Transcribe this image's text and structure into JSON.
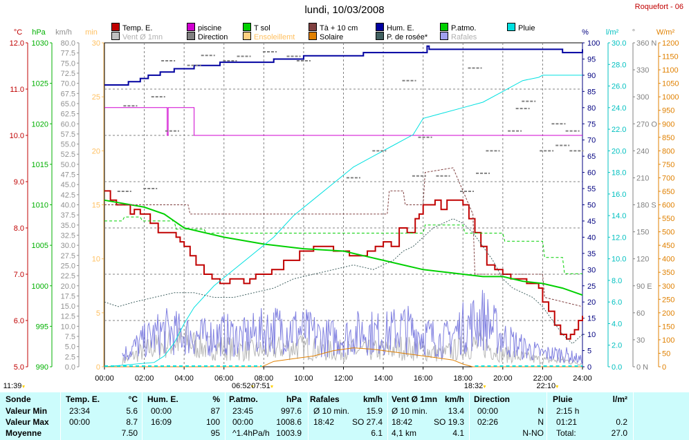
{
  "header": {
    "title": "lundi, 10/03/2008",
    "station": "Roquefort - 06"
  },
  "legend": [
    {
      "label": "Temp. E.",
      "color": "#c00000",
      "dim": false
    },
    {
      "label": "piscine",
      "color": "#d000d0",
      "dim": false
    },
    {
      "label": "T sol",
      "color": "#00d000",
      "dim": false
    },
    {
      "label": "Tà + 10 cm",
      "color": "#804040",
      "dim": false
    },
    {
      "label": "Hum. E.",
      "color": "#0000a0",
      "dim": false
    },
    {
      "label": "P.atmo.",
      "color": "#00d000",
      "dim": false
    },
    {
      "label": "Pluie",
      "color": "#00e0e0",
      "dim": false
    },
    {
      "label": "Vent Ø 1mn",
      "color": "#c0c0c0",
      "dim": true
    },
    {
      "label": "Direction",
      "color": "#808080",
      "dim": false
    },
    {
      "label": "Ensoleillemt",
      "color": "#ffd080",
      "dim": true
    },
    {
      "label": "Solaire",
      "color": "#e08000",
      "dim": false
    },
    {
      "label": "P. de rosée*",
      "color": "#406060",
      "dim": false
    },
    {
      "label": "Rafales",
      "color": "#a0a0f0",
      "dim": true
    }
  ],
  "axes": {
    "temp": {
      "unit": "°C",
      "color": "#c00000",
      "ticks": [
        "12.0",
        "11.0",
        "10.0",
        "9.0",
        "8.0",
        "7.0",
        "6.0",
        "5.0"
      ]
    },
    "press": {
      "unit": "hPa",
      "color": "#00b000",
      "ticks": [
        "1030",
        "1025",
        "1020",
        "1015",
        "1010",
        "1005",
        "1000",
        "995",
        "990"
      ]
    },
    "wind": {
      "unit": "km/h",
      "color": "#909090",
      "ticks": [
        "80.0",
        "77.5",
        "75.0",
        "72.5",
        "70.0",
        "67.5",
        "65.0",
        "62.5",
        "60.0",
        "57.5",
        "55.0",
        "52.5",
        "50.0",
        "47.5",
        "45.0",
        "42.5",
        "40.0",
        "37.5",
        "35.0",
        "32.5",
        "30.0",
        "27.5",
        "25.0",
        "22.5",
        "20.0",
        "17.5",
        "15.0",
        "12.5",
        "10.0",
        "7.5",
        "5.0",
        "2.5",
        "0.0"
      ]
    },
    "min": {
      "unit": "min",
      "color": "#ffc060",
      "ticks": [
        "30",
        "25",
        "20",
        "15",
        "10",
        "5",
        "0"
      ]
    },
    "pct": {
      "unit": "%",
      "color": "#000080",
      "ticks": [
        "100",
        "95",
        "90",
        "85",
        "80",
        "75",
        "70",
        "65",
        "60",
        "55",
        "50",
        "45",
        "40",
        "35",
        "30",
        "25",
        "20",
        "15",
        "10",
        "5",
        "0"
      ]
    },
    "rain": {
      "unit": "l/m²",
      "color": "#00c0c0",
      "ticks": [
        "30.0",
        "28.0",
        "26.0",
        "24.0",
        "22.0",
        "20.0",
        "18.0",
        "16.0",
        "14.0",
        "12.0",
        "10.0",
        "8.0",
        "6.0",
        "4.0",
        "2.0",
        "0.0"
      ]
    },
    "dir": {
      "unit": "°",
      "color": "#808080",
      "ticks": [
        "360 N",
        "330",
        "300",
        "270 O",
        "240",
        "210",
        "180 S",
        "150",
        "120",
        "90 E",
        "60",
        "30",
        "0 N"
      ]
    },
    "solar": {
      "unit": "W/m²",
      "color": "#e08000",
      "ticks": [
        "1200",
        "1150",
        "1100",
        "1050",
        "1000",
        "950",
        "900",
        "850",
        "800",
        "750",
        "700",
        "650",
        "600",
        "550",
        "500",
        "450",
        "400",
        "350",
        "300",
        "250",
        "200",
        "150",
        "100",
        "50",
        "0"
      ]
    }
  },
  "time_axis": {
    "ticks": [
      "00:00",
      "02:00",
      "04:00",
      "06:00",
      "08:00",
      "10:00",
      "12:00",
      "14:00",
      "16:00",
      "18:00",
      "20:00",
      "22:00",
      "24:00"
    ],
    "sun_labels": [
      {
        "text": "11:39",
        "hour": -4.9,
        "row": 1
      },
      {
        "text": "06:52",
        "hour": 6.87,
        "row": 1
      },
      {
        "text": "07:51",
        "hour": 7.85,
        "row": 1
      },
      {
        "text": "18:32",
        "hour": 18.53,
        "row": 1
      },
      {
        "text": "22:10",
        "hour": 22.17,
        "row": 1
      }
    ]
  },
  "chart_data": {
    "type": "line",
    "x_unit": "hour",
    "xlim": [
      0,
      24
    ],
    "series": [
      {
        "name": "Temp. E.",
        "axis": "temp",
        "color": "#c00000",
        "width": 2,
        "x": [
          0,
          0.3,
          0.6,
          1.0,
          1.3,
          1.5,
          1.8,
          2.0,
          2.3,
          2.7,
          3.2,
          3.6,
          3.8,
          4.0,
          4.3,
          4.6,
          5.0,
          5.4,
          5.8,
          6.3,
          6.6,
          7.0,
          7.3,
          7.6,
          8.0,
          8.4,
          9.0,
          9.5,
          9.8,
          10.0,
          10.5,
          11.0,
          11.5,
          11.8,
          12.0,
          12.3,
          12.8,
          13.2,
          13.6,
          14.0,
          14.4,
          14.8,
          15.2,
          15.6,
          15.8,
          16.0,
          16.3,
          16.6,
          16.9,
          17.2,
          17.6,
          18.0,
          18.3,
          18.6,
          18.9,
          19.2,
          19.6,
          20.0,
          20.4,
          20.8,
          21.2,
          21.6,
          21.8,
          22.0,
          22.3,
          22.6,
          22.9,
          23.2,
          23.4,
          23.6,
          23.8,
          24.0
        ],
        "y": [
          8.8,
          8.6,
          8.5,
          8.5,
          8.3,
          8.4,
          8.3,
          8.3,
          8.1,
          7.9,
          7.9,
          7.8,
          7.7,
          7.6,
          7.4,
          7.2,
          7.0,
          6.9,
          6.8,
          6.9,
          6.9,
          6.8,
          6.9,
          7.0,
          7.0,
          7.1,
          7.3,
          7.3,
          7.5,
          7.5,
          7.6,
          7.6,
          7.5,
          7.5,
          7.5,
          7.4,
          7.4,
          7.5,
          7.6,
          7.7,
          7.6,
          8.0,
          7.9,
          8.2,
          8.3,
          8.5,
          8.5,
          8.6,
          8.4,
          8.6,
          8.6,
          8.5,
          8.2,
          7.9,
          7.6,
          7.2,
          7.1,
          7.0,
          6.9,
          6.9,
          6.8,
          6.8,
          6.7,
          6.4,
          6.2,
          5.9,
          5.7,
          5.6,
          5.7,
          5.8,
          6.0,
          6.1
        ]
      },
      {
        "name": "piscine",
        "axis": "temp",
        "color": "#d000d0",
        "width": 1,
        "x": [
          0,
          3.1,
          3.15,
          3.2,
          3.25,
          4.45,
          4.5,
          24
        ],
        "y": [
          10.6,
          10.6,
          10.0,
          10.6,
          10.6,
          10.6,
          10.0,
          10.0
        ]
      },
      {
        "name": "T sol",
        "axis": "temp",
        "color": "#00d000",
        "width": 2,
        "x": [
          0,
          2,
          3,
          4,
          6,
          8,
          10,
          12,
          13,
          14,
          15,
          16,
          17,
          18,
          19,
          20,
          21,
          22,
          23,
          24
        ],
        "y": [
          8.6,
          8.45,
          8.3,
          8.0,
          7.8,
          7.65,
          7.55,
          7.5,
          7.4,
          7.3,
          7.2,
          7.1,
          7.05,
          7.0,
          6.95,
          6.95,
          6.85,
          6.8,
          6.7,
          6.55
        ]
      },
      {
        "name": "Tà + 10 cm",
        "axis": "temp",
        "color": "#804040",
        "width": 1,
        "dash": "3,2",
        "x": [
          0,
          4.2,
          4.3,
          14.2,
          14.3,
          15.0,
          15.1,
          16.0,
          16.1,
          17.5,
          18.5,
          18.6,
          22.0,
          22.1,
          24
        ],
        "y": [
          8.5,
          8.5,
          8.3,
          8.3,
          8.8,
          8.8,
          8.5,
          8.5,
          9.2,
          9.3,
          8.3,
          7.0,
          7.0,
          6.5,
          6.3
        ]
      },
      {
        "name": "Hum. E.",
        "axis": "pct",
        "color": "#0000a0",
        "width": 2,
        "x": [
          0,
          0.8,
          1.2,
          1.8,
          2.2,
          2.8,
          3.5,
          4.0,
          4.5,
          5.0,
          5.8,
          6.5,
          7.5,
          8.5,
          9.5,
          10.0,
          11.0,
          12.0,
          13.0,
          14.0,
          15.0,
          16.0,
          16.2,
          16.3,
          16.5,
          17.5,
          19.0,
          20.0,
          21.0,
          22.0,
          23.0,
          24.0
        ],
        "y": [
          87,
          87,
          88,
          89,
          90,
          91,
          92,
          92,
          93,
          93,
          94,
          94,
          94,
          95,
          95,
          96,
          96,
          96,
          97,
          97,
          97,
          97,
          99,
          98,
          98,
          98,
          98,
          98,
          98,
          98,
          97,
          98
        ]
      },
      {
        "name": "P.atmo.",
        "axis": "press",
        "color": "#00d000",
        "width": 1,
        "dash": "4,3",
        "x": [
          0,
          0.9,
          1.0,
          1.8,
          1.9,
          3.5,
          3.6,
          5.0,
          5.1,
          16.0,
          16.1,
          18.0,
          18.1,
          20.0,
          20.1,
          22.0,
          22.1,
          23.0,
          23.1,
          24.0
        ],
        "y": [
          1008.0,
          1008.0,
          1008.5,
          1008.5,
          1008.0,
          1008.0,
          1007.0,
          1007.0,
          1006.5,
          1006.5,
          1007.5,
          1007.5,
          1006.5,
          1006.5,
          1005.5,
          1005.5,
          1003.5,
          1003.5,
          1001.5,
          1001.5
        ]
      },
      {
        "name": "Pluie",
        "axis": "rain",
        "color": "#00e0e0",
        "width": 1,
        "x": [
          0,
          2.5,
          3.0,
          3.5,
          4.0,
          4.5,
          5.5,
          6.5,
          7.5,
          8.5,
          9.5,
          10.5,
          11.5,
          12.5,
          13.5,
          14.5,
          15.5,
          16.0,
          17.0,
          18.0,
          19.0,
          20.0,
          21.0,
          21.8,
          22.0,
          23.0,
          24.0
        ],
        "y": [
          0,
          0.4,
          1.0,
          2.2,
          4.0,
          5.5,
          7.5,
          9.0,
          10.5,
          12.0,
          14.0,
          15.5,
          17.0,
          18.5,
          19.5,
          20.5,
          21.5,
          23.0,
          23.5,
          24.0,
          24.5,
          25.5,
          26.5,
          26.8,
          27.0,
          27.0,
          27.0
        ]
      },
      {
        "name": "P. de rosée*",
        "axis": "temp",
        "color": "#406060",
        "width": 1,
        "dash": "2,2",
        "x": [
          0,
          0.7,
          1.5,
          2.5,
          3.5,
          4.5,
          5.5,
          6.5,
          7.5,
          8.5,
          9.5,
          10.5,
          11.5,
          12.5,
          13.5,
          14.0,
          14.5,
          15.0,
          15.5,
          16.0,
          16.5,
          17.0,
          17.5,
          18.0,
          18.5,
          19.0,
          19.5,
          20.0,
          20.5,
          21.0,
          21.5,
          22.0,
          22.5,
          23.0,
          23.5,
          24.0
        ],
        "y": [
          6.4,
          6.3,
          6.4,
          6.5,
          6.6,
          6.6,
          6.5,
          6.5,
          6.6,
          6.7,
          6.9,
          7.0,
          7.1,
          7.2,
          7.1,
          7.2,
          7.3,
          7.5,
          7.6,
          7.8,
          8.0,
          8.1,
          8.2,
          8.1,
          7.9,
          7.6,
          7.3,
          6.9,
          6.7,
          6.6,
          6.5,
          6.3,
          6.0,
          5.7,
          5.5,
          5.7
        ]
      },
      {
        "name": "Solaire",
        "axis": "solar",
        "color": "#e08000",
        "width": 1,
        "x": [
          0,
          7.9,
          8.5,
          9.5,
          10.5,
          11.5,
          12.5,
          13.5,
          14.5,
          15.5,
          16.5,
          17.5,
          18.0,
          18.5,
          24
        ],
        "y": [
          0,
          0,
          20,
          30,
          40,
          60,
          70,
          65,
          55,
          45,
          35,
          25,
          10,
          0,
          0
        ]
      },
      {
        "name": "Vent Ø 1mn",
        "axis": "wind",
        "color": "#b8b8b8",
        "width": 1,
        "amp": [
          0,
          2,
          5,
          7,
          8,
          6,
          6,
          5,
          5,
          6,
          6,
          5,
          5,
          5,
          5,
          6,
          5,
          4,
          6,
          7,
          4,
          3,
          2,
          2,
          1
        ]
      },
      {
        "name": "Rafales",
        "axis": "wind",
        "color": "#8080e0",
        "width": 1,
        "amp": [
          0,
          4,
          8,
          11,
          10,
          9,
          10,
          9,
          11,
          12,
          11,
          9,
          9,
          11,
          10,
          12,
          10,
          8,
          12,
          15,
          9,
          6,
          4,
          4,
          2
        ]
      },
      {
        "name": "Direction",
        "axis": "dir",
        "color": "#808080",
        "width": 2,
        "points": [
          [
            1.0,
            195
          ],
          [
            1.3,
            290
          ],
          [
            2.3,
            198
          ],
          [
            2.7,
            300
          ],
          [
            3.2,
            340
          ],
          [
            3.4,
            262
          ],
          [
            4.5,
            335
          ],
          [
            5.2,
            346
          ],
          [
            6.3,
            340
          ],
          [
            7.0,
            345
          ],
          [
            8.3,
            350
          ],
          [
            9.5,
            345
          ],
          [
            10.0,
            340
          ],
          [
            12.5,
            210
          ],
          [
            13.8,
            240
          ],
          [
            15.3,
            318
          ],
          [
            15.8,
            212
          ],
          [
            16.1,
            255
          ],
          [
            17.0,
            212
          ],
          [
            18.2,
            195
          ],
          [
            18.6,
            332
          ],
          [
            19.0,
            215
          ],
          [
            19.5,
            240
          ],
          [
            20.6,
            262
          ],
          [
            21.0,
            287
          ],
          [
            21.3,
            295
          ],
          [
            22.2,
            240
          ],
          [
            22.8,
            270
          ],
          [
            23.5,
            262
          ],
          [
            23.7,
            240
          ],
          [
            23.0,
            246
          ]
        ]
      }
    ]
  },
  "summary": {
    "headers": {
      "sonde": "Sonde",
      "temp": "Temp. E.",
      "temp_unit": "°C",
      "hum": "Hum. E.",
      "hum_unit": "%",
      "press": "P.atmo.",
      "press_unit": "hPa",
      "raf": "Rafales",
      "raf_unit": "km/h",
      "vent": "Vent Ø 1mn",
      "vent_unit": "km/h",
      "dir": "Direction",
      "pluie": "Pluie",
      "pluie_unit": "l/m²"
    },
    "rows": [
      {
        "label": "Valeur Min",
        "temp_t": "23:34",
        "temp_v": "5.6",
        "hum_t": "00:00",
        "hum_v": "87",
        "press_t": "23:45",
        "press_v": "997.6",
        "raf_t": "Ø 10 min.",
        "raf_v": "15.9",
        "vent_t": "Ø 10 min.",
        "vent_v": "13.4",
        "dir_t": "00:00",
        "dir_v": "N",
        "pluie_t": "2:15 h",
        "pluie_v": ""
      },
      {
        "label": "Valeur Max",
        "temp_t": "00:00",
        "temp_v": "8.7",
        "hum_t": "16:09",
        "hum_v": "100",
        "press_t": "00:00",
        "press_v": "1008.6",
        "raf_t": "18:42",
        "raf_v": "SO 27.4",
        "vent_t": "18:42",
        "vent_v": "SO 19.3",
        "dir_t": "02:26",
        "dir_v": "N",
        "pluie_t": "01:21",
        "pluie_v": "0.2"
      },
      {
        "label": "Moyenne",
        "temp_t": "",
        "temp_v": "7.50",
        "hum_t": "",
        "hum_v": "95",
        "press_t": "^1.4hPa/h",
        "press_v": "1003.9",
        "raf_t": "",
        "raf_v": "6.1",
        "vent_t": "4,1 km",
        "vent_v": "4.1",
        "dir_t": "",
        "dir_v": "N-NO",
        "pluie_t": "Total:",
        "pluie_v": "27.0"
      }
    ]
  }
}
